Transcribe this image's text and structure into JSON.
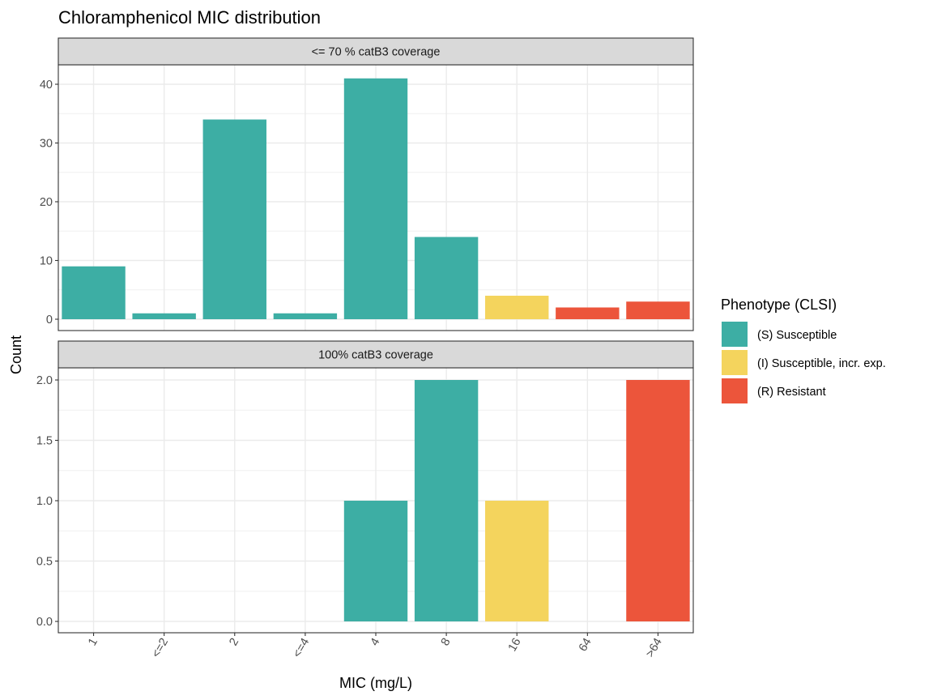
{
  "chart_data": {
    "type": "bar",
    "title": "Chloramphenicol MIC distribution",
    "xlabel": "MIC (mg/L)",
    "ylabel": "Count",
    "categories": [
      "1",
      "<=2",
      "2",
      "<=4",
      "4",
      "8",
      "16",
      "64",
      ">64"
    ],
    "grid": true,
    "legend": {
      "title": "Phenotype (CLSI)",
      "position": "right",
      "entries": [
        {
          "key": "S",
          "label": "(S) Susceptible",
          "color": "#3daea4"
        },
        {
          "key": "I",
          "label": "(I) Susceptible, incr. exp.",
          "color": "#f4d45d"
        },
        {
          "key": "R",
          "label": "(R) Resistant",
          "color": "#ec553b"
        }
      ]
    },
    "panels": [
      {
        "strip": "<= 70 % catB3 coverage",
        "ylim": [
          0,
          43
        ],
        "yticks": [
          0,
          10,
          20,
          30,
          40
        ],
        "ytick_labels": [
          "0",
          "10",
          "20",
          "30",
          "40"
        ],
        "bars": [
          {
            "category": "1",
            "value": 9,
            "phenotype": "S"
          },
          {
            "category": "<=2",
            "value": 1,
            "phenotype": "S"
          },
          {
            "category": "2",
            "value": 34,
            "phenotype": "S"
          },
          {
            "category": "<=4",
            "value": 1,
            "phenotype": "S"
          },
          {
            "category": "4",
            "value": 41,
            "phenotype": "S"
          },
          {
            "category": "8",
            "value": 14,
            "phenotype": "S"
          },
          {
            "category": "16",
            "value": 4,
            "phenotype": "I"
          },
          {
            "category": "64",
            "value": 2,
            "phenotype": "R"
          },
          {
            "category": ">64",
            "value": 3,
            "phenotype": "R"
          }
        ]
      },
      {
        "strip": "100% catB3 coverage",
        "ylim": [
          0,
          2.1
        ],
        "yticks": [
          0,
          0.5,
          1,
          1.5,
          2
        ],
        "ytick_labels": [
          "0.0",
          "0.5",
          "1.0",
          "1.5",
          "2.0"
        ],
        "bars": [
          {
            "category": "4",
            "value": 1,
            "phenotype": "S"
          },
          {
            "category": "8",
            "value": 2,
            "phenotype": "S"
          },
          {
            "category": "16",
            "value": 1,
            "phenotype": "I"
          },
          {
            "category": ">64",
            "value": 2,
            "phenotype": "R"
          }
        ]
      }
    ]
  }
}
